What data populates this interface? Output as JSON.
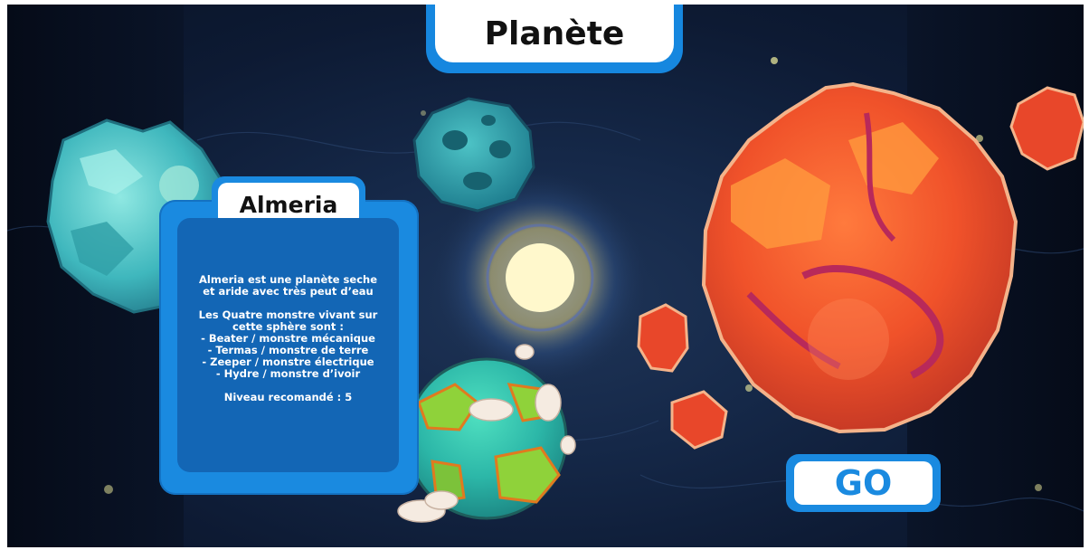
{
  "screen": {
    "title": "Planète"
  },
  "planet_info": {
    "name": "Almeria",
    "description": "Almeria est une planète seche et aride avec très peut d’eau",
    "monsters_intro": "Les Quatre monstre vivant sur cette sphère sont :",
    "monsters": [
      "- Beater / monstre mécanique",
      "- Termas / monstre de terre",
      "- Zeeper / monstre électrique",
      "- Hydre / monstre d’ivoir"
    ],
    "level": "Niveau recomandé : 5"
  },
  "actions": {
    "go_label": "GO"
  },
  "colors": {
    "panel_blue": "#1a8ae0",
    "panel_dark_blue": "#1366b5",
    "space_dark": "#0d1a33"
  },
  "icons": {
    "ice_planet": "ice-planet-icon",
    "lava_planet": "lava-planet-icon",
    "green_planet": "green-planet-icon",
    "cratered_moon": "teal-moon-icon",
    "sun": "sun-icon"
  }
}
